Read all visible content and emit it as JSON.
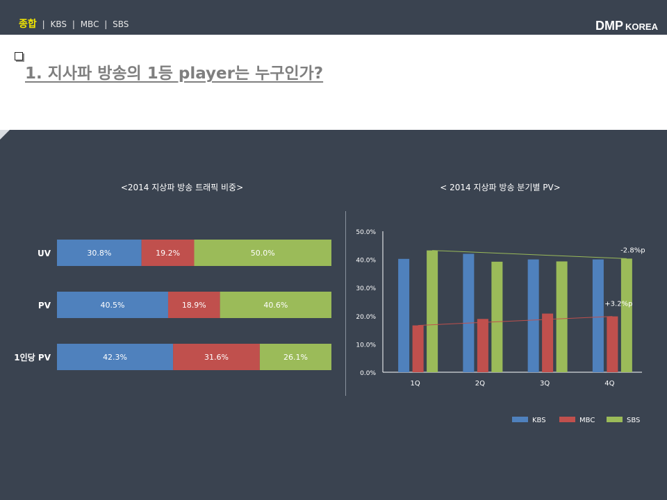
{
  "nav": {
    "active": "종합",
    "items": [
      "KBS",
      "MBC",
      "SBS"
    ],
    "separator": "|"
  },
  "brand": {
    "main": "DMP",
    "sub": "KOREA"
  },
  "page_title": "1. 지사파 방송의 1등 player는 누구인가?",
  "colors": {
    "KBS": "#4f81bd",
    "MBC": "#c0504d",
    "SBS": "#9bbb59",
    "background": "#3a4350",
    "nav_active": "#f2e600"
  },
  "chart_data": [
    {
      "type": "bar",
      "orientation": "horizontal-stacked-100",
      "title": "<2014 지상파 방송 트래픽 비중>",
      "categories": [
        "UV",
        "PV",
        "1인당 PV"
      ],
      "series": [
        {
          "name": "KBS",
          "values": [
            30.8,
            40.5,
            42.3
          ],
          "labels": [
            "30.8%",
            "40.5%",
            "42.3%"
          ]
        },
        {
          "name": "MBC",
          "values": [
            19.2,
            18.9,
            31.6
          ],
          "labels": [
            "19.2%",
            "18.9%",
            "31.6%"
          ]
        },
        {
          "name": "SBS",
          "values": [
            50.0,
            40.6,
            26.1
          ],
          "labels": [
            "50.0%",
            "40.6%",
            "26.1%"
          ]
        }
      ]
    },
    {
      "type": "bar",
      "orientation": "vertical-grouped",
      "title": "< 2014 지상파 방송 분기별 PV>",
      "categories": [
        "1Q",
        "2Q",
        "3Q",
        "4Q"
      ],
      "ylim": [
        0,
        50
      ],
      "yticks": [
        "0.0%",
        "10.0%",
        "20.0%",
        "30.0%",
        "40.0%",
        "50.0%"
      ],
      "series": [
        {
          "name": "KBS",
          "values": [
            40.2,
            42.0,
            40.0,
            40.0
          ]
        },
        {
          "name": "MBC",
          "values": [
            16.6,
            18.9,
            20.8,
            19.8
          ]
        },
        {
          "name": "SBS",
          "values": [
            43.2,
            39.2,
            39.3,
            40.3
          ]
        }
      ],
      "trendlines": [
        {
          "series": "SBS",
          "from": 43.2,
          "to": 40.3,
          "label": "-2.8%p"
        },
        {
          "series": "MBC",
          "from": 16.6,
          "to": 19.8,
          "label": "+3.2%p"
        }
      ],
      "legend": [
        "KBS",
        "MBC",
        "SBS"
      ],
      "legend_position": "bottom-right"
    }
  ]
}
